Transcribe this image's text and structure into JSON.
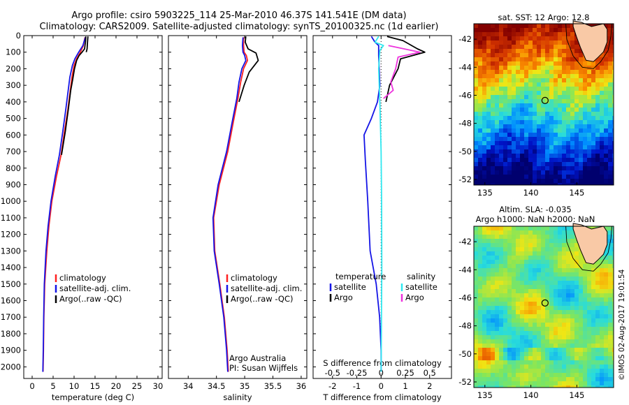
{
  "header": {
    "line1": "Argo profile: csiro 5903225_114 25-Mar-2010 46.37S 141.541E (DM data)",
    "line2": "Climatology: CARS2009. Satellite-adjusted climatology: synTS_20100325.nc (1d earlier)"
  },
  "colors": {
    "climatology": "#ff2020",
    "satellite": "#1414e6",
    "argo": "#000000",
    "salinity_satellite": "#30e8f0",
    "salinity_argo": "#ee33dd",
    "land": "#f9c9a6"
  },
  "chart_data": [
    {
      "type": "line",
      "id": "temperature",
      "xlabel": "temperature (deg C)",
      "ylabel": "",
      "xlim": [
        -2,
        31
      ],
      "ylim": [
        2070,
        0
      ],
      "xticks": [
        0,
        5,
        10,
        15,
        20,
        25,
        30
      ],
      "yticks": [
        0,
        100,
        200,
        300,
        400,
        500,
        600,
        700,
        800,
        900,
        1000,
        1100,
        1200,
        1300,
        1400,
        1500,
        1600,
        1700,
        1800,
        1900,
        2000
      ],
      "legend": [
        "climatology",
        "satellite-adj. clim.",
        "Argo(..raw -QC)"
      ],
      "series": [
        {
          "name": "climatology",
          "color_key": "climatology",
          "points": [
            [
              12.6,
              10
            ],
            [
              12.2,
              60
            ],
            [
              11.5,
              100
            ],
            [
              10.6,
              140
            ],
            [
              10,
              180
            ],
            [
              9.5,
              250
            ],
            [
              9.1,
              330
            ],
            [
              8.5,
              450
            ],
            [
              7.7,
              580
            ],
            [
              6.9,
              720
            ],
            [
              5.8,
              850
            ],
            [
              4.7,
              1000
            ],
            [
              4.0,
              1150
            ],
            [
              3.5,
              1300
            ],
            [
              3.0,
              1500
            ],
            [
              2.8,
              1700
            ],
            [
              2.7,
              1900
            ],
            [
              2.6,
              2030
            ]
          ]
        },
        {
          "name": "satellite-adj. clim.",
          "color_key": "satellite",
          "points": [
            [
              12.7,
              10
            ],
            [
              12.1,
              60
            ],
            [
              11.1,
              100
            ],
            [
              10.2,
              140
            ],
            [
              9.6,
              180
            ],
            [
              9.0,
              250
            ],
            [
              8.6,
              330
            ],
            [
              8.0,
              450
            ],
            [
              7.3,
              580
            ],
            [
              6.5,
              720
            ],
            [
              5.5,
              850
            ],
            [
              4.5,
              1000
            ],
            [
              3.8,
              1150
            ],
            [
              3.3,
              1300
            ],
            [
              2.9,
              1500
            ],
            [
              2.75,
              1700
            ],
            [
              2.65,
              1900
            ],
            [
              2.55,
              2030
            ]
          ]
        },
        {
          "name": "Argo(..raw -QC)",
          "color_key": "argo",
          "points": [
            [
              12.8,
              5
            ],
            [
              12.7,
              40
            ],
            [
              12.5,
              80
            ],
            [
              11.9,
              100
            ],
            [
              11.2,
              120
            ],
            [
              10.6,
              150
            ],
            [
              10.1,
              200
            ],
            [
              9.7,
              260
            ],
            [
              9.2,
              330
            ],
            [
              8.6,
              450
            ],
            [
              7.9,
              580
            ],
            [
              7.0,
              720
            ]
          ]
        },
        {
          "name": "Argo(..raw -QC) right edge",
          "color_key": "argo",
          "points": [
            [
              13.3,
              5
            ],
            [
              13.2,
              40
            ],
            [
              13.1,
              80
            ],
            [
              12.9,
              100
            ]
          ]
        }
      ]
    },
    {
      "type": "line",
      "id": "salinity",
      "xlabel": "salinity",
      "ylabel": "",
      "xlim": [
        33.65,
        36.1
      ],
      "ylim": [
        2070,
        0
      ],
      "xticks": [
        34,
        34.5,
        35,
        35.5,
        36
      ],
      "legend": [
        "climatology",
        "satellite-adj. clim.",
        "Argo(..raw -QC)"
      ],
      "annotation": [
        "Argo Australia",
        "PI: Susan Wijffels"
      ],
      "series": [
        {
          "name": "climatology",
          "color_key": "climatology",
          "points": [
            [
              34.98,
              10
            ],
            [
              34.98,
              60
            ],
            [
              34.99,
              100
            ],
            [
              35.03,
              120
            ],
            [
              35.05,
              150
            ],
            [
              34.98,
              200
            ],
            [
              34.93,
              280
            ],
            [
              34.88,
              380
            ],
            [
              34.8,
              520
            ],
            [
              34.7,
              700
            ],
            [
              34.55,
              900
            ],
            [
              34.45,
              1100
            ],
            [
              34.47,
              1300
            ],
            [
              34.56,
              1500
            ],
            [
              34.64,
              1700
            ],
            [
              34.69,
              1900
            ],
            [
              34.71,
              2030
            ]
          ]
        },
        {
          "name": "satellite-adj. clim.",
          "color_key": "satellite",
          "points": [
            [
              34.97,
              10
            ],
            [
              34.96,
              60
            ],
            [
              34.97,
              100
            ],
            [
              35.0,
              120
            ],
            [
              35.02,
              150
            ],
            [
              34.95,
              200
            ],
            [
              34.9,
              280
            ],
            [
              34.86,
              380
            ],
            [
              34.78,
              520
            ],
            [
              34.68,
              700
            ],
            [
              34.53,
              900
            ],
            [
              34.44,
              1100
            ],
            [
              34.46,
              1300
            ],
            [
              34.55,
              1500
            ],
            [
              34.63,
              1700
            ],
            [
              34.68,
              1900
            ],
            [
              34.7,
              2030
            ]
          ]
        },
        {
          "name": "Argo(..raw -QC)",
          "color_key": "argo",
          "points": [
            [
              35.02,
              5
            ],
            [
              35.01,
              40
            ],
            [
              35.06,
              80
            ],
            [
              35.2,
              105
            ],
            [
              35.24,
              150
            ],
            [
              35.08,
              220
            ],
            [
              34.99,
              300
            ],
            [
              34.9,
              400
            ]
          ]
        }
      ]
    },
    {
      "type": "line",
      "id": "difference",
      "xlabel": "T difference from climatology",
      "xlabel_top": "S difference from climatology",
      "ylabel": "",
      "xlim": [
        -2.8,
        2.9
      ],
      "ylim": [
        2070,
        0
      ],
      "xticks": [
        -2,
        -1,
        0,
        1,
        2
      ],
      "xticklabels_top": [
        "-0.5",
        "-0.25",
        "0",
        "0.25",
        "0.5"
      ],
      "legend_headers": [
        "temperature",
        "salinity"
      ],
      "legend": [
        "satellite",
        "Argo",
        "satellite",
        "Argo"
      ],
      "series": [
        {
          "name": "temperature satellite",
          "color_key": "satellite",
          "points": [
            [
              -0.4,
              5
            ],
            [
              -0.25,
              40
            ],
            [
              -0.1,
              60
            ],
            [
              -0.1,
              120
            ],
            [
              -0.05,
              300
            ],
            [
              -0.15,
              400
            ],
            [
              -0.4,
              500
            ],
            [
              -0.7,
              600
            ],
            [
              -0.65,
              750
            ],
            [
              -0.55,
              1000
            ],
            [
              -0.45,
              1300
            ],
            [
              -0.2,
              1500
            ],
            [
              -0.06,
              1700
            ],
            [
              0,
              1900
            ],
            [
              0,
              2030
            ]
          ]
        },
        {
          "name": "temperature Argo",
          "color_key": "argo",
          "points": [
            [
              0.25,
              5
            ],
            [
              0.9,
              30
            ],
            [
              1.5,
              80
            ],
            [
              1.8,
              100
            ],
            [
              0.8,
              140
            ],
            [
              0.7,
              200
            ],
            [
              0.35,
              300
            ],
            [
              0.2,
              400
            ]
          ]
        },
        {
          "name": "salinity satellite",
          "color_key": "salinity_satellite",
          "points": [
            [
              -0.1,
              5
            ],
            [
              -0.25,
              40
            ],
            [
              0.1,
              60
            ],
            [
              -0.05,
              90
            ],
            [
              -0.1,
              200
            ],
            [
              -0.05,
              400
            ],
            [
              0,
              700
            ],
            [
              0.02,
              1000
            ],
            [
              0.03,
              1400
            ],
            [
              0,
              2030
            ]
          ]
        },
        {
          "name": "salinity Argo",
          "color_key": "salinity_argo",
          "points": [
            [
              0.3,
              60
            ],
            [
              1.6,
              100
            ],
            [
              0.7,
              130
            ],
            [
              0.6,
              200
            ],
            [
              0.4,
              280
            ],
            [
              0.5,
              330
            ],
            [
              0.1,
              380
            ]
          ]
        }
      ]
    },
    {
      "type": "heatmap",
      "id": "sst_map",
      "title": "sat. SST: 12 Argo: 12.8",
      "xlim": [
        133.8,
        149
      ],
      "ylim": [
        -52.4,
        -40.9
      ],
      "xticks": [
        135,
        140,
        145
      ],
      "yticks": [
        -42,
        -44,
        -46,
        -48,
        -50,
        -52
      ],
      "argo_position": [
        141.541,
        -46.37
      ]
    },
    {
      "type": "heatmap",
      "id": "sla_map",
      "title": "Altim. SLA: -0.035",
      "subtitle": "Argo h1000: NaN h2000: NaN",
      "xlim": [
        133.8,
        149
      ],
      "ylim": [
        -52.4,
        -40.9
      ],
      "xticks": [
        135,
        140,
        145
      ],
      "yticks": [
        -42,
        -44,
        -46,
        -48,
        -50,
        -52
      ],
      "argo_position": [
        141.541,
        -46.37
      ]
    }
  ],
  "footer": {
    "stamp": "©IMOS 02-Aug-2017 19:01:54"
  }
}
